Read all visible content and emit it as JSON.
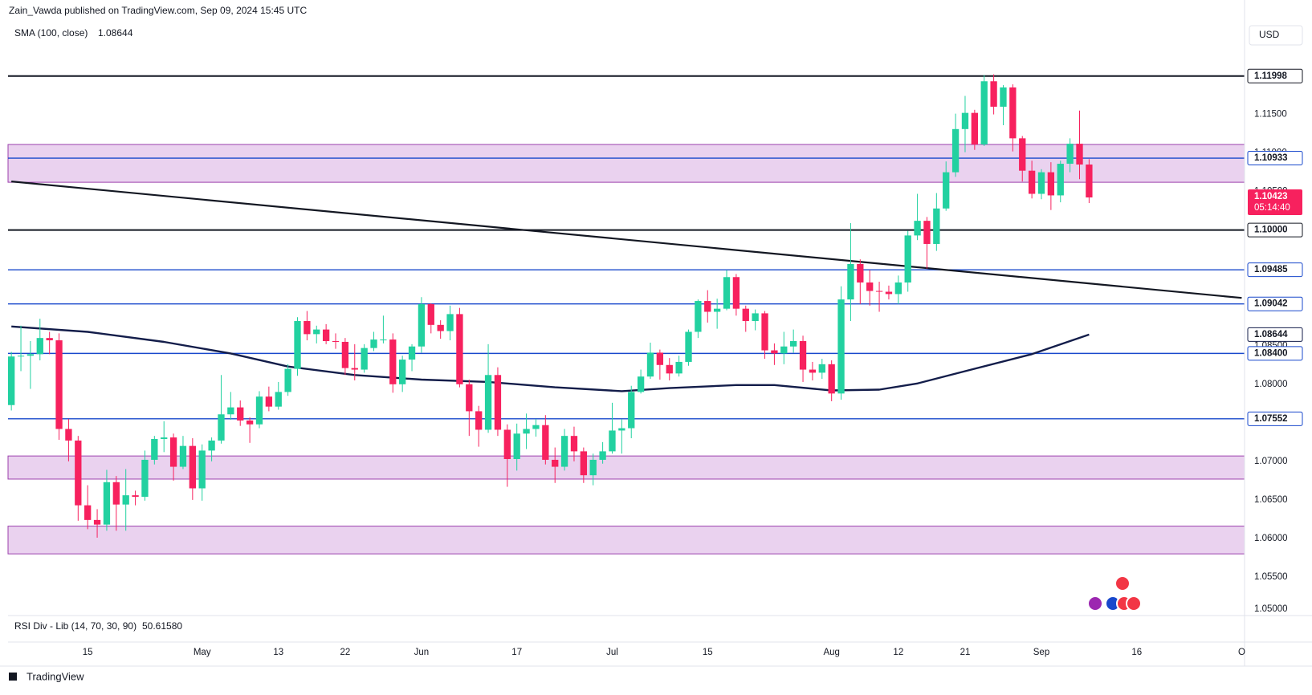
{
  "chart_data": {
    "type": "candlestick",
    "header": "Zain_Vawda published on TradingView.com, Sep 09, 2024 15:45 UTC",
    "currency": "USD",
    "footer": "TradingView",
    "timer": "05:14:40",
    "rsi_name": "RSI Div - Lib (14, 70, 30, 90)",
    "rsi_value": "50.61580",
    "up_color": "#22d1a0",
    "down_color": "#f7215e",
    "xlim": [
      -0.35,
      129.3
    ],
    "xticks": [
      {
        "value": 8,
        "label": "15"
      },
      {
        "value": 20,
        "label": "May"
      },
      {
        "value": 28,
        "label": "13"
      },
      {
        "value": 35,
        "label": "22"
      },
      {
        "value": 43,
        "label": "Jun"
      },
      {
        "value": 53,
        "label": "17"
      },
      {
        "value": 63,
        "label": "Jul"
      },
      {
        "value": 73,
        "label": "15"
      },
      {
        "value": 86,
        "label": "Aug"
      },
      {
        "value": 93,
        "label": "12"
      },
      {
        "value": 100,
        "label": "21"
      },
      {
        "value": 108,
        "label": "Sep"
      },
      {
        "value": 118,
        "label": "16"
      },
      {
        "value": 129,
        "label": "O"
      }
    ],
    "ylim": [
      1.05,
      1.1288
    ],
    "yticks": [
      {
        "value": 1.05,
        "label": "1.05000"
      },
      {
        "value": 1.055,
        "label": "1.05500"
      },
      {
        "value": 1.06,
        "label": "1.06000"
      },
      {
        "value": 1.065,
        "label": "1.06500"
      },
      {
        "value": 1.07,
        "label": "1.07000"
      },
      {
        "value": 1.08,
        "label": "1.08000"
      },
      {
        "value": 1.085,
        "label": "1.08500"
      },
      {
        "value": 1.105,
        "label": "1.10500"
      },
      {
        "value": 1.11,
        "label": "1.11000"
      },
      {
        "value": 1.115,
        "label": "1.11500"
      }
    ],
    "grid": false,
    "open": [
      1.0773,
      1.0836,
      1.0837,
      1.0839,
      1.086,
      1.0857,
      1.0742,
      1.0727,
      1.0643,
      1.0624,
      1.0618,
      1.0673,
      1.0644,
      1.0656,
      1.0654,
      1.0702,
      1.0729,
      1.0731,
      1.0693,
      1.072,
      1.0665,
      1.0714,
      1.0727,
      1.0761,
      1.077,
      1.0753,
      1.0748,
      1.0784,
      1.0771,
      1.079,
      1.082,
      1.0882,
      1.0865,
      1.0871,
      1.0856,
      1.0855,
      1.0821,
      1.0819,
      1.0847,
      1.0858,
      1.0858,
      1.08,
      1.0832,
      1.0849,
      1.0904,
      1.0877,
      1.0869,
      1.0891,
      1.08,
      1.0765,
      1.0741,
      1.0812,
      1.0741,
      1.0703,
      1.0736,
      1.0742,
      1.0747,
      1.0702,
      1.0693,
      1.0733,
      1.0713,
      1.0682,
      1.0702,
      1.0713,
      1.074,
      1.0743,
      1.079,
      1.081,
      1.0841,
      1.0825,
      1.0814,
      1.0829,
      1.0868,
      1.0908,
      1.0894,
      1.0898,
      1.0939,
      1.0898,
      1.0882,
      1.0892,
      1.0844,
      1.084,
      1.0849,
      1.0856,
      1.0819,
      1.0815,
      1.0826,
      1.0788,
      1.091,
      1.0956,
      1.0932,
      1.0921,
      1.092,
      1.0917,
      1.0932,
      1.0993,
      1.1012,
      1.0982,
      1.1028,
      1.1075,
      1.1131,
      1.1152,
      1.1111,
      1.1193,
      1.116,
      1.1185,
      1.1119,
      1.1077,
      1.1047,
      1.1075,
      1.1045,
      1.1086,
      1.1112,
      1.1085
    ],
    "high": [
      1.0842,
      1.0876,
      1.0856,
      1.0885,
      1.0868,
      1.0866,
      1.0755,
      1.0733,
      1.0669,
      1.0638,
      1.0689,
      1.0681,
      1.069,
      1.0662,
      1.0714,
      1.0733,
      1.0752,
      1.0736,
      1.0733,
      1.073,
      1.0722,
      1.0731,
      1.0812,
      1.079,
      1.0779,
      1.0757,
      1.0791,
      1.0797,
      1.0803,
      1.0826,
      1.0887,
      1.0895,
      1.0876,
      1.0878,
      1.0866,
      1.086,
      1.0852,
      1.0852,
      1.0868,
      1.0889,
      1.0866,
      1.0837,
      1.0852,
      1.0913,
      1.0905,
      1.0883,
      1.0902,
      1.0899,
      1.0806,
      1.0772,
      1.0852,
      1.0822,
      1.0748,
      1.0749,
      1.0762,
      1.0755,
      1.076,
      1.0718,
      1.0742,
      1.0745,
      1.0718,
      1.071,
      1.0725,
      1.0776,
      1.0755,
      1.0798,
      1.0819,
      1.0854,
      1.0845,
      1.0834,
      1.0837,
      1.0871,
      1.091,
      1.0922,
      1.0911,
      1.0948,
      1.0943,
      1.0902,
      1.0897,
      1.0895,
      1.0853,
      1.0868,
      1.0871,
      1.0863,
      1.0829,
      1.0833,
      1.0831,
      1.0927,
      1.1009,
      1.0962,
      1.0948,
      1.0933,
      1.0928,
      1.0941,
      1.0999,
      1.1047,
      1.1017,
      1.1048,
      1.1089,
      1.1151,
      1.1174,
      1.1156,
      1.1201,
      1.1202,
      1.1188,
      1.1189,
      1.1122,
      1.109,
      1.1079,
      1.1088,
      1.109,
      1.1119,
      1.1155,
      1.1092
    ],
    "low": [
      1.0766,
      1.0817,
      1.0794,
      1.0831,
      1.0839,
      1.0728,
      1.07,
      1.0623,
      1.0612,
      1.0601,
      1.061,
      1.061,
      1.061,
      1.0643,
      1.0649,
      1.0696,
      1.0712,
      1.0675,
      1.069,
      1.065,
      1.0649,
      1.07,
      1.0723,
      1.0754,
      1.0746,
      1.0724,
      1.0743,
      1.0765,
      1.0767,
      1.0785,
      1.0811,
      1.0857,
      1.0853,
      1.0852,
      1.0846,
      1.0812,
      1.0805,
      1.0815,
      1.0843,
      1.0853,
      1.0789,
      1.079,
      1.0817,
      1.0841,
      1.0866,
      1.0859,
      1.0857,
      1.0796,
      1.0733,
      1.0719,
      1.0737,
      1.0733,
      1.0667,
      1.0688,
      1.0716,
      1.0732,
      1.0696,
      1.0672,
      1.0688,
      1.07,
      1.0672,
      1.0669,
      1.0697,
      1.071,
      1.071,
      1.073,
      1.0788,
      1.0807,
      1.0806,
      1.0805,
      1.081,
      1.0824,
      1.086,
      1.088,
      1.0872,
      1.0896,
      1.0889,
      1.0868,
      1.087,
      1.0833,
      1.0825,
      1.0826,
      1.0841,
      1.0803,
      1.0805,
      1.0807,
      1.0778,
      1.078,
      1.0882,
      1.0904,
      1.0902,
      1.0894,
      1.091,
      1.0904,
      1.092,
      1.0987,
      1.095,
      1.0973,
      1.1025,
      1.1069,
      1.1101,
      1.1104,
      1.1109,
      1.115,
      1.1136,
      1.1102,
      1.1063,
      1.1041,
      1.104,
      1.1026,
      1.1036,
      1.1075,
      1.1066,
      1.1035
    ],
    "close": [
      1.0836,
      1.0837,
      1.0839,
      1.086,
      1.0857,
      1.0742,
      1.0727,
      1.0643,
      1.0624,
      1.0618,
      1.0673,
      1.0644,
      1.0656,
      1.0654,
      1.0702,
      1.0729,
      1.0731,
      1.0693,
      1.072,
      1.0665,
      1.0714,
      1.0727,
      1.0761,
      1.077,
      1.0753,
      1.0748,
      1.0784,
      1.0771,
      1.079,
      1.082,
      1.0882,
      1.0865,
      1.0871,
      1.0856,
      1.0855,
      1.0821,
      1.0819,
      1.0847,
      1.0858,
      1.0858,
      1.08,
      1.0832,
      1.0849,
      1.0904,
      1.0877,
      1.0869,
      1.0891,
      1.08,
      1.0765,
      1.0741,
      1.0812,
      1.0741,
      1.0703,
      1.0736,
      1.0742,
      1.0747,
      1.0702,
      1.0693,
      1.0733,
      1.0713,
      1.0682,
      1.0702,
      1.0713,
      1.074,
      1.0743,
      1.079,
      1.081,
      1.0841,
      1.0825,
      1.0814,
      1.0829,
      1.0868,
      1.0908,
      1.0894,
      1.0898,
      1.0939,
      1.0898,
      1.0882,
      1.0892,
      1.0844,
      1.084,
      1.0849,
      1.0856,
      1.0819,
      1.0815,
      1.0826,
      1.0788,
      1.091,
      1.0956,
      1.0932,
      1.0921,
      1.092,
      1.0917,
      1.0932,
      1.0993,
      1.1012,
      1.0982,
      1.1028,
      1.1075,
      1.1131,
      1.1152,
      1.1111,
      1.1193,
      1.116,
      1.1185,
      1.1119,
      1.1077,
      1.1047,
      1.1075,
      1.1045,
      1.1086,
      1.1112,
      1.1085,
      1.10423
    ],
    "sma": {
      "name": "SMA (100, close)",
      "color": "#131d4a",
      "x": [
        0,
        8,
        16,
        23,
        29,
        36,
        43,
        50,
        57,
        64,
        69,
        76,
        80,
        86,
        91,
        95,
        100,
        107,
        113
      ],
      "values": [
        1.0875,
        1.0868,
        1.0855,
        1.084,
        1.0823,
        1.0812,
        1.0806,
        1.0803,
        1.0796,
        1.0791,
        1.0795,
        1.0799,
        1.0799,
        1.0792,
        1.0793,
        1.0801,
        1.0817,
        1.0839,
        1.08644
      ]
    },
    "trendline": {
      "color": "#131722",
      "x": [
        0,
        129
      ],
      "values": [
        1.1063,
        1.0912
      ]
    },
    "zones": [
      {
        "top": 1.1111,
        "bottom": 1.1062,
        "color": "#ead2ef",
        "border": "#9c40ad"
      },
      {
        "top": 1.0707,
        "bottom": 1.0677,
        "color": "#ead2ef",
        "border": "#9c40ad"
      },
      {
        "top": 1.0616,
        "bottom": 1.058,
        "color": "#ead2ef",
        "border": "#9c40ad"
      }
    ],
    "levels": [
      {
        "value": 1.11998,
        "label": "1.11998",
        "color": "#131722"
      },
      {
        "value": 1.10933,
        "label": "1.10933",
        "color": "#1848cc"
      },
      {
        "value": 1.1,
        "label": "1.10000",
        "color": "#131722"
      },
      {
        "value": 1.09485,
        "label": "1.09485",
        "color": "#1848cc"
      },
      {
        "value": 1.09042,
        "label": "1.09042",
        "color": "#1848cc"
      },
      {
        "value": 1.084,
        "label": "1.08400",
        "color": "#1848cc"
      },
      {
        "value": 1.07552,
        "label": "1.07552",
        "color": "#1848cc"
      }
    ]
  }
}
